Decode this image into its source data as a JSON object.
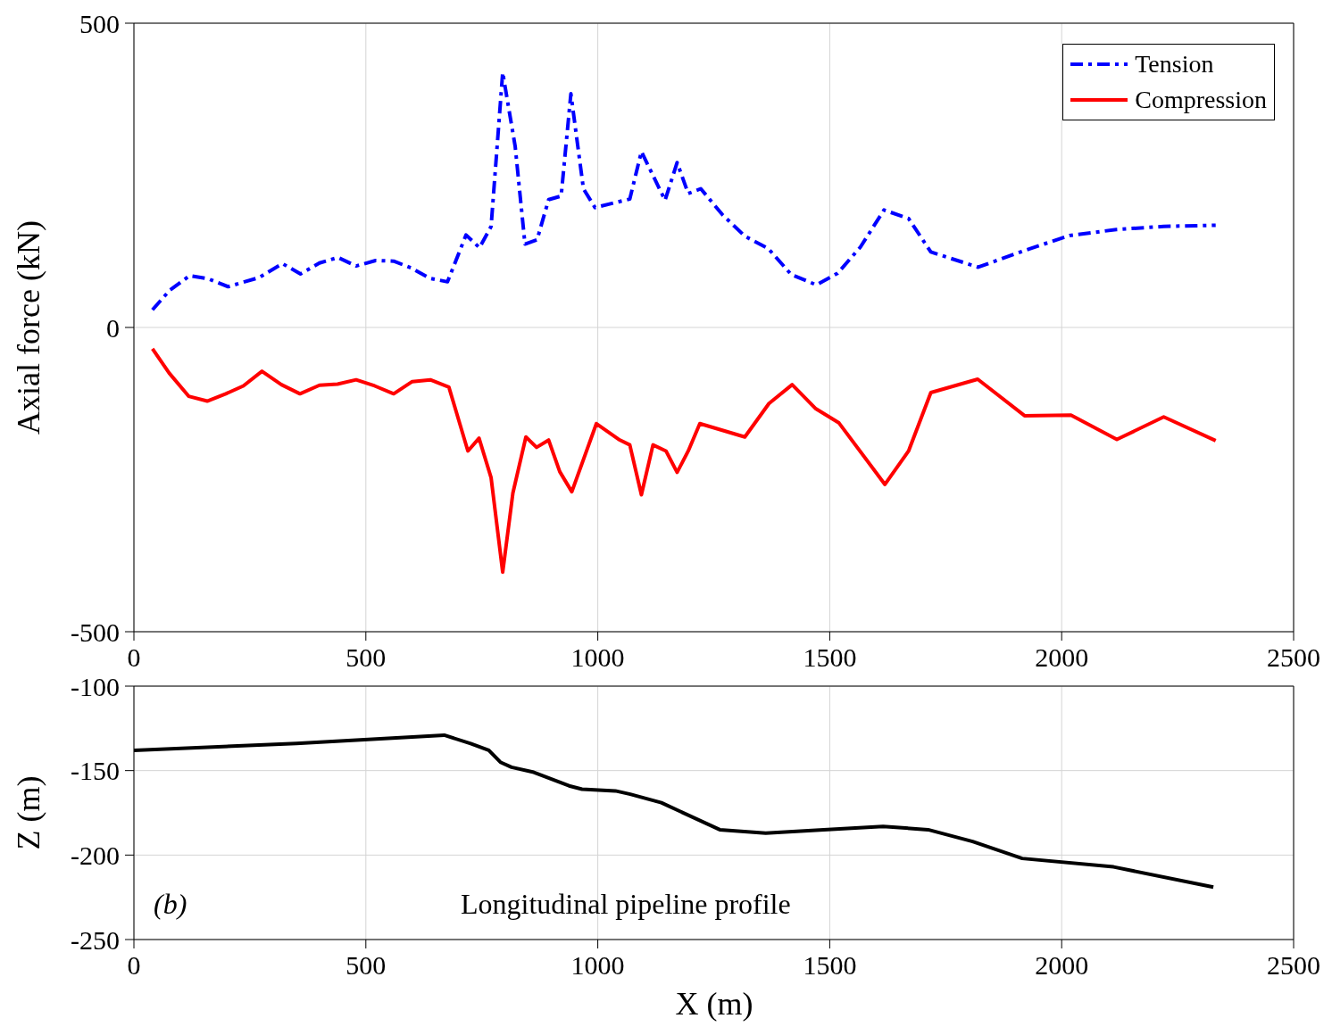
{
  "chart_data": [
    {
      "type": "line",
      "ylabel": "Axial force (kN)",
      "xlim": [
        0,
        2500
      ],
      "xticks": [
        0,
        500,
        1000,
        1500,
        2000,
        2500
      ],
      "ylim": [
        -500,
        500
      ],
      "yticks": [
        -500,
        0,
        500
      ],
      "grid": true,
      "legend": "top right",
      "marker": "none",
      "series": [
        {
          "name": "Tension",
          "color": "#0000ff",
          "line_style": "dashed",
          "x": [
            40,
            77,
            120,
            160,
            203,
            270,
            320,
            359,
            400,
            440,
            479,
            521,
            560,
            597,
            637,
            676,
            716,
            745,
            770,
            795,
            822,
            843,
            869,
            894,
            921,
            942,
            969,
            994,
            1069,
            1094,
            1145,
            1171,
            1195,
            1222,
            1269,
            1317,
            1367,
            1417,
            1471,
            1517,
            1566,
            1617,
            1670,
            1718,
            1820,
            1922,
            2017,
            2118,
            2220,
            2332
          ],
          "values": [
            29,
            61,
            85,
            80,
            67,
            82,
            105,
            88,
            106,
            115,
            101,
            110,
            109,
            98,
            81,
            75,
            152,
            131,
            166,
            419,
            297,
            137,
            144,
            210,
            216,
            384,
            228,
            197,
            211,
            289,
            209,
            271,
            220,
            228,
            185,
            150,
            130,
            87,
            70,
            89,
            132,
            193,
            179,
            124,
            99,
            127,
            151,
            161,
            166,
            168
          ]
        },
        {
          "name": "Compression",
          "color": "#ff0000",
          "line_style": "solid",
          "x": [
            40,
            76,
            118,
            158,
            198,
            236,
            276,
            318,
            358,
            400,
            439,
            479,
            519,
            560,
            600,
            639,
            679,
            720,
            744,
            770,
            795,
            817,
            845,
            868,
            894,
            918,
            944,
            997,
            1045,
            1069,
            1094,
            1119,
            1147,
            1171,
            1195,
            1220,
            1317,
            1369,
            1419,
            1469,
            1520,
            1619,
            1670,
            1718,
            1819,
            1920,
            2020,
            2119,
            2220,
            2332
          ],
          "values": [
            -35,
            -75,
            -113,
            -121,
            -109,
            -96,
            -72,
            -94,
            -109,
            -95,
            -93,
            -86,
            -96,
            -109,
            -89,
            -86,
            -98,
            -203,
            -182,
            -247,
            -402,
            -272,
            -180,
            -197,
            -185,
            -237,
            -270,
            -158,
            -184,
            -193,
            -275,
            -193,
            -203,
            -238,
            -203,
            -158,
            -180,
            -125,
            -94,
            -133,
            -157,
            -258,
            -203,
            -107,
            -85,
            -145,
            -144,
            -184,
            -147,
            -186
          ]
        }
      ]
    },
    {
      "type": "line",
      "xlabel": "X (m)",
      "ylabel": "Z (m)",
      "xlim": [
        0,
        2500
      ],
      "xticks": [
        0,
        500,
        1000,
        1500,
        2000,
        2500
      ],
      "ylim": [
        -250,
        -100
      ],
      "yticks": [
        -250,
        -200,
        -150,
        -100
      ],
      "grid": true,
      "marker": "none",
      "annotations": [
        "(b)",
        "Longitudinal pipeline profile"
      ],
      "series": [
        {
          "color": "#000000",
          "line_style": "solid",
          "x": [
            0,
            350,
            669,
            726,
            765,
            790,
            814,
            862,
            938,
            966,
            1038,
            1070,
            1137,
            1263,
            1362,
            1487,
            1615,
            1712,
            1808,
            1915,
            2112,
            2327
          ],
          "values": [
            -138,
            -134,
            -129,
            -134,
            -138,
            -145,
            -148,
            -151,
            -159,
            -161,
            -162,
            -164,
            -169,
            -185,
            -187,
            -185,
            -183,
            -185,
            -192,
            -202,
            -207,
            -219
          ]
        }
      ]
    }
  ]
}
